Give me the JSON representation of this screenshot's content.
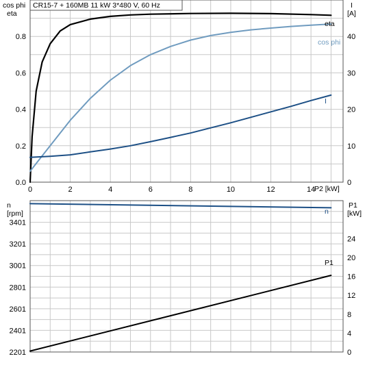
{
  "colors": {
    "eta": "#000000",
    "cos_phi": "#6f9bbf",
    "current": "#1c4f85",
    "speed": "#1c4f85",
    "p1": "#000000",
    "grid": "#c8c8c8"
  },
  "chart_data": [
    {
      "type": "line",
      "title": "CR15-7 + 160MB   11 kW   3*480 V, 60 Hz",
      "xlabel": "P2 [kW]",
      "ylabel_left": [
        "cos phi",
        "eta"
      ],
      "ylabel_right": [
        "I",
        "[A]"
      ],
      "xlim": [
        0,
        15.6
      ],
      "ylim_left": [
        0,
        1.0
      ],
      "ylim_right": [
        0,
        50
      ],
      "xticks": [
        "0",
        "2",
        "4",
        "6",
        "8",
        "10",
        "12",
        "14"
      ],
      "yticks_left": [
        "0.0",
        "0.2",
        "0.4",
        "0.6",
        "0.8"
      ],
      "yticks_right": [
        "0",
        "10",
        "20",
        "30",
        "40"
      ],
      "grid": true,
      "series": [
        {
          "name": "eta",
          "axis": "left",
          "x": [
            0,
            0.1,
            0.3,
            0.6,
            1.0,
            1.5,
            2,
            3,
            4,
            5,
            6,
            8,
            10,
            12,
            14,
            15
          ],
          "y": [
            0,
            0.25,
            0.5,
            0.66,
            0.76,
            0.83,
            0.865,
            0.895,
            0.91,
            0.918,
            0.922,
            0.926,
            0.927,
            0.925,
            0.92,
            0.916
          ]
        },
        {
          "name": "cos phi",
          "axis": "left",
          "x": [
            0,
            0.5,
            1,
            2,
            3,
            4,
            5,
            6,
            7,
            8,
            9,
            10,
            11,
            12,
            13,
            14,
            15
          ],
          "y": [
            0.06,
            0.13,
            0.2,
            0.34,
            0.46,
            0.56,
            0.64,
            0.7,
            0.745,
            0.78,
            0.805,
            0.822,
            0.836,
            0.846,
            0.855,
            0.862,
            0.868
          ]
        },
        {
          "name": "I",
          "axis": "right",
          "x": [
            0,
            1,
            2,
            3,
            4,
            5,
            6,
            7,
            8,
            9,
            10,
            11,
            12,
            13,
            14,
            15
          ],
          "y": [
            6.8,
            7.1,
            7.5,
            8.3,
            9.1,
            10.0,
            11.1,
            12.3,
            13.5,
            14.9,
            16.3,
            17.8,
            19.3,
            20.8,
            22.4,
            23.9
          ]
        }
      ]
    },
    {
      "type": "line",
      "xlim": [
        0,
        15.6
      ],
      "ylabel_left": [
        "n",
        "[rpm]"
      ],
      "ylabel_right": [
        "P1",
        "[kW]"
      ],
      "ylim_left": [
        2201,
        3601
      ],
      "ylim_right": [
        0,
        32
      ],
      "yticks_left": [
        "2201",
        "2401",
        "2601",
        "2801",
        "3001",
        "3201",
        "3401"
      ],
      "yticks_right": [
        "0",
        "4",
        "8",
        "12",
        "16",
        "20",
        "24"
      ],
      "grid": true,
      "series": [
        {
          "name": "n",
          "axis": "left",
          "x": [
            0,
            15
          ],
          "y": [
            3573,
            3535
          ]
        },
        {
          "name": "P1",
          "axis": "right",
          "x": [
            0,
            15
          ],
          "y": [
            0.2,
            16.2
          ]
        }
      ]
    }
  ]
}
